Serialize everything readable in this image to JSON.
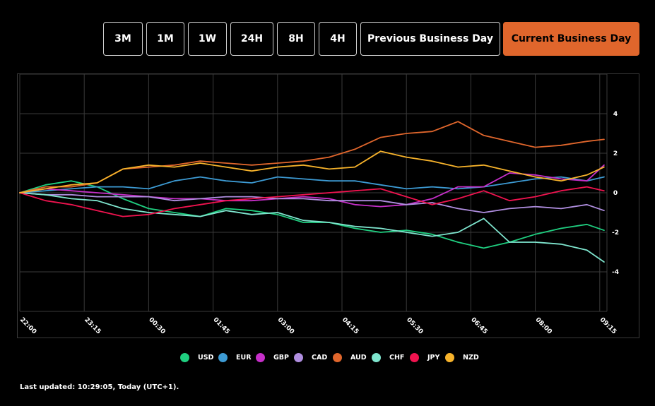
{
  "tabs": [
    {
      "label": "3M",
      "active": false
    },
    {
      "label": "1M",
      "active": false
    },
    {
      "label": "1W",
      "active": false
    },
    {
      "label": "24H",
      "active": false
    },
    {
      "label": "8H",
      "active": false
    },
    {
      "label": "4H",
      "active": false
    },
    {
      "label": "Previous Business Day",
      "active": false
    },
    {
      "label": "Current Business Day",
      "active": true
    }
  ],
  "colors": {
    "accent": "#e0662c",
    "background": "#000000",
    "grid": "#3a3a3a",
    "USD": "#1fcf80",
    "EUR": "#3d9bd4",
    "GBP": "#c62fc9",
    "CAD": "#b08ee0",
    "AUD": "#e0662c",
    "CHF": "#7fe6cf",
    "JPY": "#f0134f",
    "NZD": "#f7b32b"
  },
  "chart_data": {
    "type": "line",
    "title": "",
    "xlabel": "",
    "ylabel": "",
    "x_ticks": [
      "22:00",
      "23:15",
      "00:30",
      "01:45",
      "03:00",
      "04:15",
      "05:30",
      "06:45",
      "08:00",
      "09:15"
    ],
    "y_ticks": [
      "4",
      "2",
      "0",
      "-2",
      "-4"
    ],
    "ylim": [
      -6,
      6
    ],
    "grid": true,
    "legend_position": "bottom",
    "x": [
      "22:00",
      "22:30",
      "23:00",
      "23:30",
      "00:00",
      "00:30",
      "01:00",
      "01:30",
      "02:00",
      "02:30",
      "03:00",
      "03:30",
      "04:00",
      "04:30",
      "05:00",
      "05:30",
      "06:00",
      "06:30",
      "07:00",
      "07:30",
      "08:00",
      "08:30",
      "09:00",
      "09:20"
    ],
    "series": [
      {
        "name": "USD",
        "values": [
          0,
          0.4,
          0.6,
          0.3,
          -0.3,
          -0.8,
          -1.0,
          -1.2,
          -0.8,
          -0.9,
          -1.1,
          -1.5,
          -1.5,
          -1.8,
          -2.0,
          -1.9,
          -2.1,
          -2.5,
          -2.8,
          -2.5,
          -2.1,
          -1.8,
          -1.6,
          -1.9
        ]
      },
      {
        "name": "EUR",
        "values": [
          0,
          0.1,
          0.2,
          0.3,
          0.3,
          0.2,
          0.6,
          0.8,
          0.6,
          0.5,
          0.8,
          0.7,
          0.6,
          0.6,
          0.4,
          0.2,
          0.3,
          0.2,
          0.3,
          0.5,
          0.7,
          0.8,
          0.6,
          0.8
        ]
      },
      {
        "name": "GBP",
        "values": [
          0,
          0.2,
          0.1,
          0.0,
          -0.1,
          -0.2,
          -0.3,
          -0.3,
          -0.4,
          -0.4,
          -0.3,
          -0.2,
          -0.3,
          -0.6,
          -0.7,
          -0.6,
          -0.3,
          0.3,
          0.3,
          1.0,
          0.9,
          0.7,
          0.6,
          1.4
        ]
      },
      {
        "name": "CAD",
        "values": [
          0,
          -0.1,
          -0.1,
          -0.2,
          -0.2,
          -0.2,
          -0.4,
          -0.3,
          -0.2,
          -0.2,
          -0.3,
          -0.3,
          -0.4,
          -0.4,
          -0.4,
          -0.6,
          -0.5,
          -0.8,
          -1.0,
          -0.8,
          -0.7,
          -0.8,
          -0.6,
          -0.9
        ]
      },
      {
        "name": "AUD",
        "values": [
          0,
          0.3,
          0.3,
          0.5,
          1.2,
          1.3,
          1.4,
          1.6,
          1.5,
          1.4,
          1.5,
          1.6,
          1.8,
          2.2,
          2.8,
          3.0,
          3.1,
          3.6,
          2.9,
          2.6,
          2.3,
          2.4,
          2.6,
          2.7
        ]
      },
      {
        "name": "CHF",
        "values": [
          0,
          -0.1,
          -0.3,
          -0.4,
          -0.8,
          -1.0,
          -1.1,
          -1.2,
          -0.9,
          -1.1,
          -1.0,
          -1.4,
          -1.5,
          -1.7,
          -1.8,
          -2.0,
          -2.2,
          -2.0,
          -1.3,
          -2.5,
          -2.5,
          -2.6,
          -2.9,
          -3.5
        ]
      },
      {
        "name": "JPY",
        "values": [
          0,
          -0.4,
          -0.6,
          -0.9,
          -1.2,
          -1.1,
          -0.8,
          -0.6,
          -0.4,
          -0.3,
          -0.2,
          -0.1,
          0.0,
          0.1,
          0.2,
          -0.2,
          -0.6,
          -0.3,
          0.1,
          -0.4,
          -0.2,
          0.1,
          0.3,
          0.1
        ]
      },
      {
        "name": "NZD",
        "values": [
          0,
          0.2,
          0.4,
          0.5,
          1.2,
          1.4,
          1.3,
          1.5,
          1.3,
          1.1,
          1.3,
          1.4,
          1.2,
          1.3,
          2.1,
          1.8,
          1.6,
          1.3,
          1.4,
          1.1,
          0.8,
          0.6,
          0.9,
          1.3
        ]
      }
    ]
  },
  "legend": [
    {
      "label": "USD",
      "color": "#1fcf80"
    },
    {
      "label": "EUR",
      "color": "#3d9bd4"
    },
    {
      "label": "GBP",
      "color": "#c62fc9"
    },
    {
      "label": "CAD",
      "color": "#b08ee0"
    },
    {
      "label": "AUD",
      "color": "#e0662c"
    },
    {
      "label": "CHF",
      "color": "#7fe6cf"
    },
    {
      "label": "JPY",
      "color": "#f0134f"
    },
    {
      "label": "NZD",
      "color": "#f7b32b"
    }
  ],
  "footer": {
    "last_updated": "Last updated: 10:29:05, Today (UTC+1)."
  }
}
